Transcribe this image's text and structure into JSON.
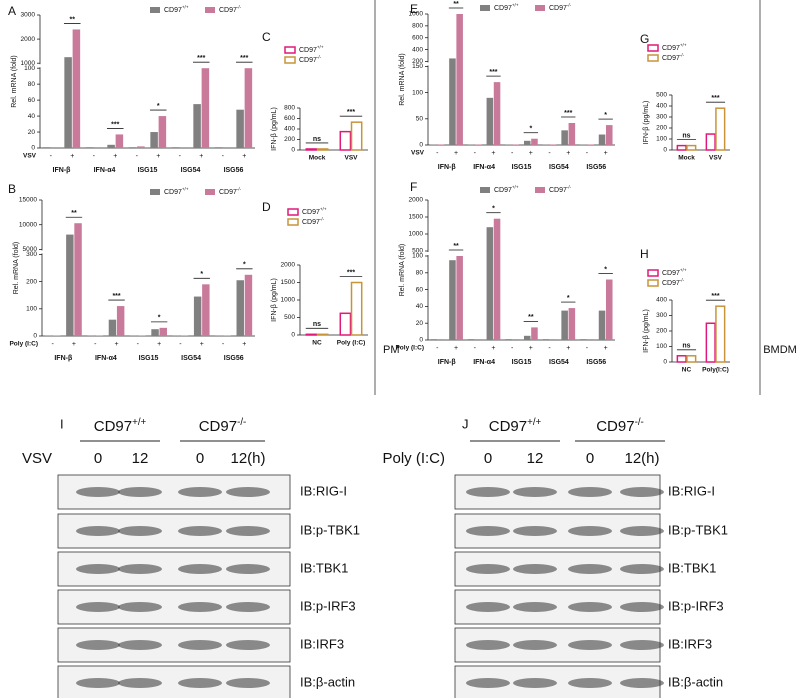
{
  "chart_data": [
    {
      "type": "bar",
      "panel": "A",
      "ylabel": "Rel. mRNA (fold)",
      "treatment_label": "VSV",
      "categories": [
        "-",
        "+",
        "-",
        "+",
        "-",
        "+",
        "-",
        "+",
        "-",
        "+"
      ],
      "groups": [
        "IFN-β",
        "IFN-α4",
        "ISG15",
        "ISG54",
        "ISG56"
      ],
      "significance": [
        "**",
        "***",
        "*",
        "***",
        "***"
      ],
      "series": [
        {
          "name": "CD97",
          "sup": "+/+",
          "color": "#808080",
          "values": [
            1,
            1250,
            1,
            4,
            1,
            20,
            1,
            55,
            1,
            48
          ]
        },
        {
          "name": "CD97",
          "sup": "-/-",
          "color": "#c9799a",
          "values": [
            1,
            2400,
            1,
            17,
            2,
            40,
            1,
            100,
            1,
            100
          ]
        }
      ],
      "ylim": [
        0,
        3000
      ],
      "ybreak": [
        100,
        1000
      ],
      "yticks": [
        0,
        20,
        40,
        60,
        80,
        100,
        1000,
        2000,
        3000
      ],
      "legend": "top-right",
      "bar_style": "filled"
    },
    {
      "type": "bar",
      "panel": "B",
      "ylabel": "Rel. mRNA (fold)",
      "treatment_label": "Poly (I:C)",
      "categories": [
        "-",
        "+",
        "-",
        "+",
        "-",
        "+",
        "-",
        "+",
        "-",
        "+"
      ],
      "groups": [
        "IFN-β",
        "IFN-α4",
        "ISG15",
        "ISG54",
        "ISG56"
      ],
      "significance": [
        "**",
        "***",
        "*",
        "*",
        "*"
      ],
      "series": [
        {
          "name": "CD97",
          "sup": "+/+",
          "color": "#808080",
          "values": [
            2,
            8000,
            2,
            60,
            2,
            25,
            2,
            145,
            2,
            205
          ]
        },
        {
          "name": "CD97",
          "sup": "-/-",
          "color": "#c9799a",
          "values": [
            2,
            10300,
            2,
            110,
            2,
            30,
            2,
            190,
            2,
            225
          ]
        }
      ],
      "ylim": [
        0,
        15000
      ],
      "ybreak": [
        300,
        5000
      ],
      "yticks": [
        0,
        100,
        200,
        300,
        5000,
        10000,
        15000
      ],
      "legend": "top-right",
      "bar_style": "filled"
    },
    {
      "type": "bar",
      "panel": "C",
      "ylabel": "IFN-β (pg/mL)",
      "categories": [
        "Mock",
        "VSV"
      ],
      "significance": [
        "ns",
        "***"
      ],
      "series": [
        {
          "name": "CD97",
          "sup": "+/+",
          "color": "#e0187a",
          "values": [
            20,
            350
          ]
        },
        {
          "name": "CD97",
          "sup": "-/-",
          "color": "#c8943a",
          "values": [
            20,
            530
          ]
        }
      ],
      "ylim": [
        0,
        800
      ],
      "yticks": [
        0,
        200,
        400,
        600,
        800
      ],
      "legend": "upper-left",
      "bar_style": "outline"
    },
    {
      "type": "bar",
      "panel": "D",
      "ylabel": "IFN-β (pg/mL)",
      "categories": [
        "NC",
        "Poly (I:C)"
      ],
      "significance": [
        "ns",
        "***"
      ],
      "series": [
        {
          "name": "CD97",
          "sup": "+/+",
          "color": "#e0187a",
          "values": [
            20,
            620
          ]
        },
        {
          "name": "CD97",
          "sup": "-/-",
          "color": "#c8943a",
          "values": [
            20,
            1500
          ]
        }
      ],
      "ylim": [
        0,
        2000
      ],
      "yticks": [
        0,
        500,
        1000,
        1500,
        2000
      ],
      "legend": "upper-left",
      "bar_style": "outline"
    },
    {
      "type": "bar",
      "panel": "E",
      "ylabel": "Rel. mRNA (fold)",
      "treatment_label": "VSV",
      "categories": [
        "-",
        "+",
        "-",
        "+",
        "-",
        "+",
        "-",
        "+",
        "-",
        "+"
      ],
      "groups": [
        "IFN-β",
        "IFN-α4",
        "ISG15",
        "ISG54",
        "ISG56"
      ],
      "significance": [
        "**",
        "***",
        "*",
        "***",
        "*"
      ],
      "series": [
        {
          "name": "CD97",
          "sup": "+/+",
          "color": "#808080",
          "values": [
            1,
            250,
            1,
            90,
            1,
            8,
            1,
            28,
            1,
            20
          ]
        },
        {
          "name": "CD97",
          "sup": "-/-",
          "color": "#c9799a",
          "values": [
            1,
            1000,
            1,
            120,
            1,
            12,
            1,
            42,
            1,
            38
          ]
        }
      ],
      "ylim": [
        0,
        1000
      ],
      "ybreak": [
        150,
        200
      ],
      "yticks": [
        0,
        50,
        100,
        150,
        200,
        400,
        600,
        800,
        1000
      ],
      "legend": "top-right",
      "bar_style": "filled"
    },
    {
      "type": "bar",
      "panel": "F",
      "ylabel": "Rel. mRNA (fold)",
      "treatment_label": "Poly (I:C)",
      "categories": [
        "-",
        "+",
        "-",
        "+",
        "-",
        "+",
        "-",
        "+",
        "-",
        "+"
      ],
      "groups": [
        "IFN-β",
        "IFN-α4",
        "ISG15",
        "ISG54",
        "ISG56"
      ],
      "significance": [
        "**",
        "*",
        "**",
        "*",
        "*"
      ],
      "series": [
        {
          "name": "CD97",
          "sup": "+/+",
          "color": "#808080",
          "values": [
            1,
            95,
            1,
            1200,
            1,
            5,
            1,
            35,
            1,
            35
          ]
        },
        {
          "name": "CD97",
          "sup": "-/-",
          "color": "#c9799a",
          "values": [
            1,
            100,
            1,
            1450,
            1,
            15,
            1,
            38,
            1,
            72
          ]
        }
      ],
      "ylim": [
        0,
        2000
      ],
      "ybreak": [
        100,
        500
      ],
      "yticks": [
        0,
        20,
        40,
        60,
        80,
        100,
        500,
        1000,
        1500,
        2000
      ],
      "legend": "top-right",
      "bar_style": "filled"
    },
    {
      "type": "bar",
      "panel": "G",
      "ylabel": "IFN-β (pg/mL)",
      "categories": [
        "Mock",
        "VSV"
      ],
      "significance": [
        "ns",
        "***"
      ],
      "series": [
        {
          "name": "CD97",
          "sup": "+/+",
          "color": "#e0187a",
          "values": [
            40,
            145
          ]
        },
        {
          "name": "CD97",
          "sup": "-/-",
          "color": "#c8943a",
          "values": [
            40,
            380
          ]
        }
      ],
      "ylim": [
        0,
        500
      ],
      "yticks": [
        0,
        100,
        200,
        300,
        400,
        500
      ],
      "legend": "upper-left",
      "bar_style": "outline"
    },
    {
      "type": "bar",
      "panel": "H",
      "ylabel": "IFN-β (pg/mL)",
      "categories": [
        "NC",
        "Poly(I:C)"
      ],
      "significance": [
        "ns",
        "***"
      ],
      "series": [
        {
          "name": "CD97",
          "sup": "+/+",
          "color": "#e0187a",
          "values": [
            40,
            250
          ]
        },
        {
          "name": "CD97",
          "sup": "-/-",
          "color": "#c8943a",
          "values": [
            40,
            360
          ]
        }
      ],
      "ylim": [
        0,
        400
      ],
      "yticks": [
        0,
        100,
        200,
        300,
        400
      ],
      "legend": "upper-left",
      "bar_style": "outline"
    }
  ],
  "side_labels": [
    "PM",
    "BMDM"
  ],
  "blots": [
    {
      "panel": "I",
      "treatment": "VSV",
      "groups": [
        {
          "name": "CD97",
          "sup": "+/+"
        },
        {
          "name": "CD97",
          "sup": "-/-"
        }
      ],
      "times": [
        "0",
        "12",
        "0",
        "12(h)"
      ],
      "bands": [
        "IB:RIG-I",
        "IB:p-TBK1",
        "IB:TBK1",
        "IB:p-IRF3",
        "IB:IRF3",
        "IB:β-actin"
      ]
    },
    {
      "panel": "J",
      "treatment": "Poly (I:C)",
      "groups": [
        {
          "name": "CD97",
          "sup": "+/+"
        },
        {
          "name": "CD97",
          "sup": "-/-"
        }
      ],
      "times": [
        "0",
        "12",
        "0",
        "12(h)"
      ],
      "bands": [
        "IB:RIG-I",
        "IB:p-TBK1",
        "IB:TBK1",
        "IB:p-IRF3",
        "IB:IRF3",
        "IB:β-actin"
      ]
    }
  ]
}
